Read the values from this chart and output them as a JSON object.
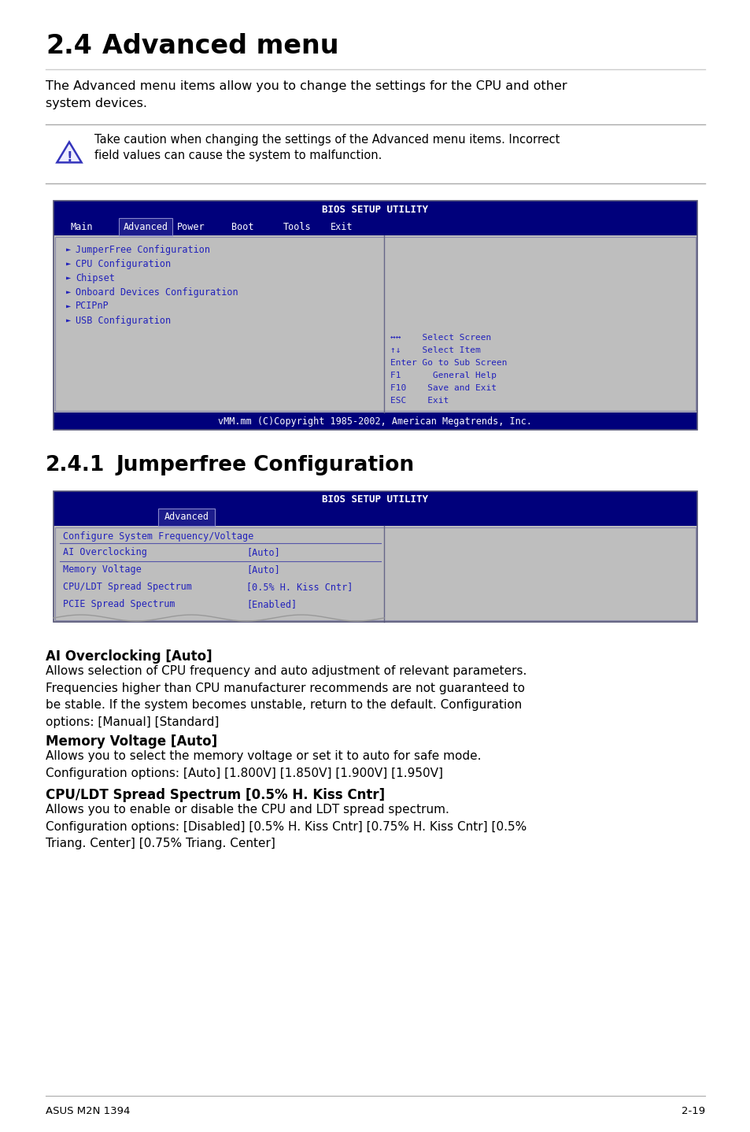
{
  "title_section_num": "2.4",
  "title_section_text": "Advanced menu",
  "intro_text_line1": "The Advanced menu items allow you to change the settings for the CPU and other",
  "intro_text_line2": "system devices.",
  "caution_text_line1": "Take caution when changing the settings of the Advanced menu items. Incorrect",
  "caution_text_line2": "field values can cause the system to malfunction.",
  "bios1_title": "BIOS SETUP UTILITY",
  "bios1_menu": [
    "Main",
    "Advanced",
    "Power",
    "Boot",
    "Tools",
    "Exit"
  ],
  "bios1_active": "Advanced",
  "bios1_items": [
    "JumperFree Configuration",
    "CPU Configuration",
    "Chipset",
    "Onboard Devices Configuration",
    "PCIPnP",
    "USB Configuration"
  ],
  "bios1_help_line1": "↔↔    Select Screen",
  "bios1_help_line2": "↑↓    Select Item",
  "bios1_help_line3": "Enter Go to Sub Screen",
  "bios1_help_line4": "F1      General Help",
  "bios1_help_line5": "F10    Save and Exit",
  "bios1_help_line6": "ESC    Exit",
  "bios1_footer": "vMM.mm (C)Copyright 1985-2002, American Megatrends, Inc.",
  "section241_num": "2.4.1",
  "section241_text": "Jumperfree Configuration",
  "bios2_title": "BIOS SETUP UTILITY",
  "bios2_active": "Advanced",
  "bios2_configure": "Configure System Frequency/Voltage",
  "bios2_row1_label": "AI Overclocking",
  "bios2_row1_val": "[Auto]",
  "bios2_row2_label": "Memory Voltage",
  "bios2_row2_val": "[Auto]",
  "bios2_row3_label": "CPU/LDT Spread Spectrum",
  "bios2_row3_val": "[0.5% H. Kiss Cntr]",
  "bios2_row4_label": "PCIE Spread Spectrum",
  "bios2_row4_val": "[Enabled]",
  "section_ai_title": "AI Overclocking [Auto]",
  "section_ai_p": "Allows selection of CPU frequency and auto adjustment of relevant parameters.\nFrequencies higher than CPU manufacturer recommends are not guaranteed to\nbe stable. If the system becomes unstable, return to the default. Configuration\noptions: [Manual] [Standard]",
  "section_mv_title": "Memory Voltage [Auto]",
  "section_mv_p": "Allows you to select the memory voltage or set it to auto for safe mode.\nConfiguration options: [Auto] [1.800V] [1.850V] [1.900V] [1.950V]",
  "section_cpu_title": "CPU/LDT Spread Spectrum [0.5% H. Kiss Cntr]",
  "section_cpu_p": "Allows you to enable or disable the CPU and LDT spread spectrum.\nConfiguration options: [Disabled] [0.5% H. Kiss Cntr] [0.75% H. Kiss Cntr] [0.5%\nTriang. Center] [0.75% Triang. Center]",
  "footer_left": "ASUS M2N 1394",
  "footer_right": "2-19",
  "bg": "#ffffff",
  "navy": "#000080",
  "dark_navy": "#00007B",
  "gray_bios": "#BEBEBE",
  "blue_text": "#2222BB",
  "white": "#ffffff",
  "line_gray": "#AAAAAA",
  "tri_blue": "#3333BB"
}
